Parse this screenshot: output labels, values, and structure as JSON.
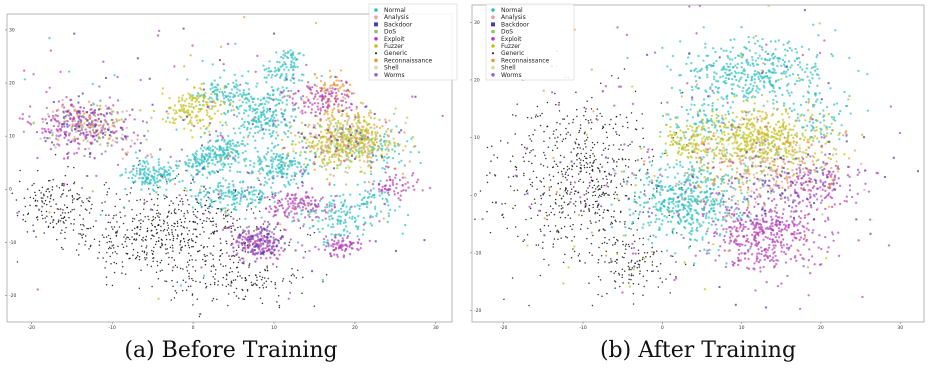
{
  "colors": {
    "Normal": "#2fbfbf",
    "Analysis": "#e8a0a0",
    "Backdoor": "#4b3fa8",
    "DoS": "#8bc46a",
    "Exploit": "#b53fb5",
    "Fuzzer": "#c3c21f",
    "Generic": "#111111",
    "Reconnaissance": "#e89a3a",
    "Shell": "#cfe0a0",
    "Worms": "#8a6fc0"
  },
  "chart_data": [
    {
      "type": "scatter",
      "panel": "a",
      "caption": "(a) Before Training",
      "xticks": [
        -20,
        -10,
        0,
        10,
        20,
        30
      ],
      "yticks": [
        30,
        20,
        10,
        0,
        -10,
        -20
      ],
      "xlim": [
        -23,
        32
      ],
      "ylim": [
        -25,
        33
      ],
      "legend": [
        "Normal",
        "Analysis",
        "Backdoor",
        "DoS",
        "Exploit",
        "Fuzzer",
        "Generic",
        "Reconnaissance",
        "Shell",
        "Worms"
      ],
      "legend_position": "top-right",
      "clusters": [
        {
          "cls": "Generic",
          "cx": -3,
          "cy": -8,
          "rx": 13,
          "ry": 9,
          "n": 620
        },
        {
          "cls": "Generic",
          "cx": -17,
          "cy": -3,
          "rx": 5,
          "ry": 6,
          "n": 140
        },
        {
          "cls": "Generic",
          "cx": 6,
          "cy": -18,
          "rx": 8,
          "ry": 4,
          "n": 120
        },
        {
          "cls": "Normal",
          "cx": 4,
          "cy": 7,
          "rx": 3,
          "ry": 3,
          "n": 140
        },
        {
          "cls": "Normal",
          "cx": -5,
          "cy": 3,
          "rx": 3.5,
          "ry": 3,
          "n": 150
        },
        {
          "cls": "Normal",
          "cx": 1,
          "cy": 5,
          "rx": 2.5,
          "ry": 2.5,
          "n": 90
        },
        {
          "cls": "Normal",
          "cx": 9,
          "cy": 14,
          "rx": 4,
          "ry": 5,
          "n": 220
        },
        {
          "cls": "Normal",
          "cx": 11,
          "cy": 4,
          "rx": 4,
          "ry": 3.5,
          "n": 170
        },
        {
          "cls": "Normal",
          "cx": 5,
          "cy": -1,
          "rx": 5,
          "ry": 3,
          "n": 150
        },
        {
          "cls": "Normal",
          "cx": 4,
          "cy": 18,
          "rx": 4,
          "ry": 3,
          "n": 110
        },
        {
          "cls": "Normal",
          "cx": 11,
          "cy": 22,
          "rx": 3,
          "ry": 2,
          "n": 60
        },
        {
          "cls": "Normal",
          "cx": 18,
          "cy": -5,
          "rx": 5,
          "ry": 5,
          "n": 140
        },
        {
          "cls": "Normal",
          "cx": 24,
          "cy": 8,
          "rx": 4,
          "ry": 4,
          "n": 60
        },
        {
          "cls": "Normal",
          "cx": 22,
          "cy": -2,
          "rx": 3,
          "ry": 3,
          "n": 50
        },
        {
          "cls": "Normal",
          "cx": 12,
          "cy": 25,
          "rx": 2,
          "ry": 1.5,
          "n": 30
        },
        {
          "cls": "Fuzzer",
          "cx": 19,
          "cy": 9,
          "rx": 6,
          "ry": 5,
          "n": 330
        },
        {
          "cls": "Fuzzer",
          "cx": 0,
          "cy": 15,
          "rx": 4,
          "ry": 4,
          "n": 160
        },
        {
          "cls": "Reconnaissance",
          "cx": 19,
          "cy": 10,
          "rx": 6,
          "ry": 5,
          "n": 120
        },
        {
          "cls": "Reconnaissance",
          "cx": 17,
          "cy": 19,
          "rx": 3,
          "ry": 3,
          "n": 70
        },
        {
          "cls": "Reconnaissance",
          "cx": -13,
          "cy": 13,
          "rx": 4,
          "ry": 4,
          "n": 60
        },
        {
          "cls": "Exploit",
          "cx": -14,
          "cy": 12,
          "rx": 6,
          "ry": 5,
          "n": 190
        },
        {
          "cls": "Exploit",
          "cx": 8,
          "cy": -10,
          "rx": 3.5,
          "ry": 3,
          "n": 170
        },
        {
          "cls": "Exploit",
          "cx": 13,
          "cy": -3,
          "rx": 4,
          "ry": 3,
          "n": 130
        },
        {
          "cls": "Exploit",
          "cx": 16,
          "cy": 17,
          "rx": 4,
          "ry": 3,
          "n": 110
        },
        {
          "cls": "Exploit",
          "cx": 18,
          "cy": -11,
          "rx": 3,
          "ry": 2,
          "n": 80
        },
        {
          "cls": "Exploit",
          "cx": 25,
          "cy": 1,
          "rx": 3,
          "ry": 3,
          "n": 60
        },
        {
          "cls": "Analysis",
          "cx": 19,
          "cy": 10,
          "rx": 6,
          "ry": 5,
          "n": 60
        },
        {
          "cls": "Analysis",
          "cx": -13,
          "cy": 12,
          "rx": 6,
          "ry": 5,
          "n": 50
        },
        {
          "cls": "Backdoor",
          "cx": -14,
          "cy": 12,
          "rx": 6,
          "ry": 5,
          "n": 60
        },
        {
          "cls": "Backdoor",
          "cx": 8,
          "cy": -10,
          "rx": 3.5,
          "ry": 3,
          "n": 50
        },
        {
          "cls": "Backdoor",
          "cx": 19,
          "cy": 9,
          "rx": 6,
          "ry": 5,
          "n": 40
        },
        {
          "cls": "DoS",
          "cx": 19,
          "cy": 9,
          "rx": 6,
          "ry": 5,
          "n": 70
        },
        {
          "cls": "DoS",
          "cx": -13,
          "cy": 12,
          "rx": 6,
          "ry": 5,
          "n": 40
        },
        {
          "cls": "Worms",
          "cx": -13,
          "cy": 12,
          "rx": 6,
          "ry": 5,
          "n": 40
        },
        {
          "cls": "Worms",
          "cx": 8,
          "cy": -9,
          "rx": 3,
          "ry": 3,
          "n": 30
        },
        {
          "cls": "Shell",
          "cx": 19,
          "cy": 9,
          "rx": 6,
          "ry": 5,
          "n": 30
        },
        {
          "cls": "Exploit",
          "cx": 5,
          "cy": 8,
          "rx": 26,
          "ry": 24,
          "n": 110
        },
        {
          "cls": "Backdoor",
          "cx": 5,
          "cy": 8,
          "rx": 26,
          "ry": 24,
          "n": 60
        },
        {
          "cls": "Reconnaissance",
          "cx": 5,
          "cy": 8,
          "rx": 26,
          "ry": 24,
          "n": 50
        },
        {
          "cls": "Normal",
          "cx": 5,
          "cy": 8,
          "rx": 26,
          "ry": 24,
          "n": 40
        }
      ]
    },
    {
      "type": "scatter",
      "panel": "b",
      "caption": "(b) After Training",
      "xticks": [
        -20,
        -10,
        0,
        10,
        20,
        30
      ],
      "yticks": [
        30,
        20,
        10,
        0,
        -10,
        -20
      ],
      "xlim": [
        -24,
        33
      ],
      "ylim": [
        -22,
        33
      ],
      "legend": [
        "Normal",
        "Analysis",
        "Backdoor",
        "DoS",
        "Exploit",
        "Fuzzer",
        "Generic",
        "Reconnaissance",
        "Shell",
        "Worms"
      ],
      "legend_position": "top-left",
      "clusters": [
        {
          "cls": "Generic",
          "cx": -11,
          "cy": 3,
          "rx": 10,
          "ry": 14,
          "n": 620
        },
        {
          "cls": "Generic",
          "cx": -4,
          "cy": -12,
          "rx": 6,
          "ry": 5,
          "n": 120
        },
        {
          "cls": "Normal",
          "cx": 12,
          "cy": 21,
          "rx": 10,
          "ry": 6,
          "n": 420
        },
        {
          "cls": "Normal",
          "cx": 3,
          "cy": -1,
          "rx": 7,
          "ry": 7,
          "n": 500
        },
        {
          "cls": "Normal",
          "cx": 5,
          "cy": 13,
          "rx": 4,
          "ry": 4,
          "n": 90
        },
        {
          "cls": "Normal",
          "cx": 20,
          "cy": 14,
          "rx": 4,
          "ry": 4,
          "n": 60
        },
        {
          "cls": "Fuzzer",
          "cx": 12,
          "cy": 10,
          "rx": 8,
          "ry": 5,
          "n": 460
        },
        {
          "cls": "Fuzzer",
          "cx": 3,
          "cy": 9,
          "rx": 3,
          "ry": 3,
          "n": 80
        },
        {
          "cls": "Exploit",
          "cx": 13,
          "cy": -7,
          "rx": 7,
          "ry": 6,
          "n": 420
        },
        {
          "cls": "Exploit",
          "cx": 20,
          "cy": 2,
          "rx": 5,
          "ry": 4,
          "n": 140
        },
        {
          "cls": "Reconnaissance",
          "cx": 10,
          "cy": 5,
          "rx": 8,
          "ry": 6,
          "n": 130
        },
        {
          "cls": "Reconnaissance",
          "cx": 18,
          "cy": 7,
          "rx": 6,
          "ry": 6,
          "n": 60
        },
        {
          "cls": "Analysis",
          "cx": 15,
          "cy": 3,
          "rx": 8,
          "ry": 7,
          "n": 60
        },
        {
          "cls": "Backdoor",
          "cx": 15,
          "cy": 2,
          "rx": 8,
          "ry": 7,
          "n": 70
        },
        {
          "cls": "DoS",
          "cx": 12,
          "cy": 7,
          "rx": 8,
          "ry": 6,
          "n": 70
        },
        {
          "cls": "Worms",
          "cx": 15,
          "cy": 0,
          "rx": 8,
          "ry": 6,
          "n": 40
        },
        {
          "cls": "Shell",
          "cx": 12,
          "cy": 9,
          "rx": 8,
          "ry": 5,
          "n": 40
        },
        {
          "cls": "Exploit",
          "cx": 6,
          "cy": 4,
          "rx": 26,
          "ry": 24,
          "n": 120
        },
        {
          "cls": "Backdoor",
          "cx": 6,
          "cy": 4,
          "rx": 26,
          "ry": 24,
          "n": 50
        },
        {
          "cls": "Reconnaissance",
          "cx": 6,
          "cy": 4,
          "rx": 26,
          "ry": 24,
          "n": 50
        },
        {
          "cls": "Fuzzer",
          "cx": 6,
          "cy": 4,
          "rx": 26,
          "ry": 24,
          "n": 40
        }
      ]
    }
  ]
}
